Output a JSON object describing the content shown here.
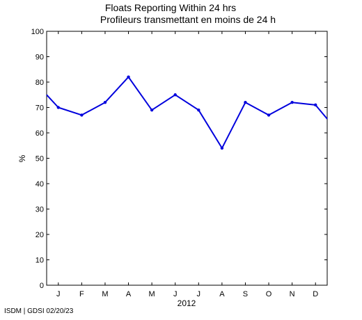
{
  "chart_data": {
    "type": "line",
    "title": "Floats Reporting Within 24 hrs",
    "subtitle": "Profileurs transmettant en moins de 24 h",
    "xlabel": "2012",
    "ylabel": "%",
    "ylim": [
      0,
      100
    ],
    "yticks": [
      0,
      10,
      20,
      30,
      40,
      50,
      60,
      70,
      80,
      90,
      100
    ],
    "xlim": [
      0.5,
      12.5
    ],
    "x_tick_positions": [
      1,
      2,
      3,
      4,
      5,
      6,
      7,
      8,
      9,
      10,
      11,
      12
    ],
    "x_tick_labels": [
      "J",
      "F",
      "M",
      "A",
      "M",
      "J",
      "J",
      "A",
      "S",
      "O",
      "N",
      "D"
    ],
    "grid": false,
    "series": [
      {
        "color": "#0000dd",
        "x": [
          0.5,
          1,
          2,
          3,
          4,
          5,
          6,
          7,
          8,
          9,
          10,
          11,
          12,
          12.5
        ],
        "y": [
          75,
          70,
          67,
          72,
          82,
          69,
          75,
          69,
          54,
          72,
          67,
          72,
          71,
          65.5
        ]
      }
    ]
  },
  "footer": "ISDM | GDSI 02/20/23"
}
